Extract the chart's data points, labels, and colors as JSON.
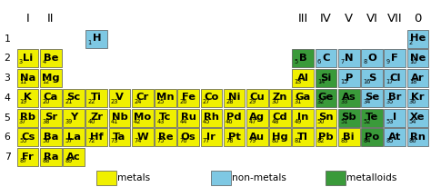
{
  "metals_color": "#f0f000",
  "nonmetals_color": "#7ec8e3",
  "metalloids_color": "#3a9a3a",
  "border_color": "#555555",
  "bg_color": "#ffffff",
  "elements": [
    {
      "symbol": "H",
      "num": "1",
      "col": 4,
      "row": 1,
      "type": "nonmetal"
    },
    {
      "symbol": "He",
      "num": "2",
      "col": 18,
      "row": 1,
      "type": "nonmetal"
    },
    {
      "symbol": "Li",
      "num": "3",
      "col": 1,
      "row": 2,
      "type": "metal"
    },
    {
      "symbol": "Be",
      "num": "4",
      "col": 2,
      "row": 2,
      "type": "metal"
    },
    {
      "symbol": "B",
      "num": "5",
      "col": 13,
      "row": 2,
      "type": "metalloid"
    },
    {
      "symbol": "C",
      "num": "6",
      "col": 14,
      "row": 2,
      "type": "nonmetal"
    },
    {
      "symbol": "N",
      "num": "7",
      "col": 15,
      "row": 2,
      "type": "nonmetal"
    },
    {
      "symbol": "O",
      "num": "8",
      "col": 16,
      "row": 2,
      "type": "nonmetal"
    },
    {
      "symbol": "F",
      "num": "9",
      "col": 17,
      "row": 2,
      "type": "nonmetal"
    },
    {
      "symbol": "Ne",
      "num": "10",
      "col": 18,
      "row": 2,
      "type": "nonmetal"
    },
    {
      "symbol": "Na",
      "num": "11",
      "col": 1,
      "row": 3,
      "type": "metal"
    },
    {
      "symbol": "Mg",
      "num": "12",
      "col": 2,
      "row": 3,
      "type": "metal"
    },
    {
      "symbol": "Al",
      "num": "13",
      "col": 13,
      "row": 3,
      "type": "metal"
    },
    {
      "symbol": "Si",
      "num": "14",
      "col": 14,
      "row": 3,
      "type": "metalloid"
    },
    {
      "symbol": "P",
      "num": "15",
      "col": 15,
      "row": 3,
      "type": "nonmetal"
    },
    {
      "symbol": "S",
      "num": "16",
      "col": 16,
      "row": 3,
      "type": "nonmetal"
    },
    {
      "symbol": "Cl",
      "num": "17",
      "col": 17,
      "row": 3,
      "type": "nonmetal"
    },
    {
      "symbol": "Ar",
      "num": "18",
      "col": 18,
      "row": 3,
      "type": "nonmetal"
    },
    {
      "symbol": "K",
      "num": "19",
      "col": 1,
      "row": 4,
      "type": "metal"
    },
    {
      "symbol": "Ca",
      "num": "20",
      "col": 2,
      "row": 4,
      "type": "metal"
    },
    {
      "symbol": "Sc",
      "num": "21",
      "col": 3,
      "row": 4,
      "type": "metal"
    },
    {
      "symbol": "Ti",
      "num": "22",
      "col": 4,
      "row": 4,
      "type": "metal"
    },
    {
      "symbol": "V",
      "num": "23",
      "col": 5,
      "row": 4,
      "type": "metal"
    },
    {
      "symbol": "Cr",
      "num": "24",
      "col": 6,
      "row": 4,
      "type": "metal"
    },
    {
      "symbol": "Mn",
      "num": "25",
      "col": 7,
      "row": 4,
      "type": "metal"
    },
    {
      "symbol": "Fe",
      "num": "26",
      "col": 8,
      "row": 4,
      "type": "metal"
    },
    {
      "symbol": "Co",
      "num": "27",
      "col": 9,
      "row": 4,
      "type": "metal"
    },
    {
      "symbol": "Ni",
      "num": "28",
      "col": 10,
      "row": 4,
      "type": "metal"
    },
    {
      "symbol": "Cu",
      "num": "29",
      "col": 11,
      "row": 4,
      "type": "metal"
    },
    {
      "symbol": "Zn",
      "num": "30",
      "col": 12,
      "row": 4,
      "type": "metal"
    },
    {
      "symbol": "Ga",
      "num": "31",
      "col": 13,
      "row": 4,
      "type": "metal"
    },
    {
      "symbol": "Ge",
      "num": "32",
      "col": 14,
      "row": 4,
      "type": "metalloid"
    },
    {
      "symbol": "As",
      "num": "33",
      "col": 15,
      "row": 4,
      "type": "metalloid"
    },
    {
      "symbol": "Se",
      "num": "34",
      "col": 16,
      "row": 4,
      "type": "nonmetal"
    },
    {
      "symbol": "Br",
      "num": "35",
      "col": 17,
      "row": 4,
      "type": "nonmetal"
    },
    {
      "symbol": "Kr",
      "num": "36",
      "col": 18,
      "row": 4,
      "type": "nonmetal"
    },
    {
      "symbol": "Rb",
      "num": "37",
      "col": 1,
      "row": 5,
      "type": "metal"
    },
    {
      "symbol": "Sr",
      "num": "38",
      "col": 2,
      "row": 5,
      "type": "metal"
    },
    {
      "symbol": "Y",
      "num": "39",
      "col": 3,
      "row": 5,
      "type": "metal"
    },
    {
      "symbol": "Zr",
      "num": "40",
      "col": 4,
      "row": 5,
      "type": "metal"
    },
    {
      "symbol": "Nb",
      "num": "41",
      "col": 5,
      "row": 5,
      "type": "metal"
    },
    {
      "symbol": "Mo",
      "num": "42",
      "col": 6,
      "row": 5,
      "type": "metal"
    },
    {
      "symbol": "Tc",
      "num": "43",
      "col": 7,
      "row": 5,
      "type": "metal"
    },
    {
      "symbol": "Ru",
      "num": "44",
      "col": 8,
      "row": 5,
      "type": "metal"
    },
    {
      "symbol": "Rh",
      "num": "45",
      "col": 9,
      "row": 5,
      "type": "metal"
    },
    {
      "symbol": "Pd",
      "num": "46",
      "col": 10,
      "row": 5,
      "type": "metal"
    },
    {
      "symbol": "Ag",
      "num": "47",
      "col": 11,
      "row": 5,
      "type": "metal"
    },
    {
      "symbol": "Cd",
      "num": "48",
      "col": 12,
      "row": 5,
      "type": "metal"
    },
    {
      "symbol": "In",
      "num": "49",
      "col": 13,
      "row": 5,
      "type": "metal"
    },
    {
      "symbol": "Sn",
      "num": "50",
      "col": 14,
      "row": 5,
      "type": "metal"
    },
    {
      "symbol": "Sb",
      "num": "51",
      "col": 15,
      "row": 5,
      "type": "metalloid"
    },
    {
      "symbol": "Te",
      "num": "52",
      "col": 16,
      "row": 5,
      "type": "metalloid"
    },
    {
      "symbol": "I",
      "num": "53",
      "col": 17,
      "row": 5,
      "type": "nonmetal"
    },
    {
      "symbol": "Xe",
      "num": "54",
      "col": 18,
      "row": 5,
      "type": "nonmetal"
    },
    {
      "symbol": "Cs",
      "num": "55",
      "col": 1,
      "row": 6,
      "type": "metal"
    },
    {
      "symbol": "Ba",
      "num": "56",
      "col": 2,
      "row": 6,
      "type": "metal"
    },
    {
      "symbol": "La",
      "num": "57",
      "col": 3,
      "row": 6,
      "type": "metal"
    },
    {
      "symbol": "Hf",
      "num": "72",
      "col": 4,
      "row": 6,
      "type": "metal"
    },
    {
      "symbol": "Ta",
      "num": "73",
      "col": 5,
      "row": 6,
      "type": "metal"
    },
    {
      "symbol": "W",
      "num": "74",
      "col": 6,
      "row": 6,
      "type": "metal"
    },
    {
      "symbol": "Re",
      "num": "75",
      "col": 7,
      "row": 6,
      "type": "metal"
    },
    {
      "symbol": "Os",
      "num": "76",
      "col": 8,
      "row": 6,
      "type": "metal"
    },
    {
      "symbol": "Ir",
      "num": "77",
      "col": 9,
      "row": 6,
      "type": "metal"
    },
    {
      "symbol": "Pt",
      "num": "78",
      "col": 10,
      "row": 6,
      "type": "metal"
    },
    {
      "symbol": "Au",
      "num": "79",
      "col": 11,
      "row": 6,
      "type": "metal"
    },
    {
      "symbol": "Hg",
      "num": "80",
      "col": 12,
      "row": 6,
      "type": "metal"
    },
    {
      "symbol": "Tl",
      "num": "81",
      "col": 13,
      "row": 6,
      "type": "metal"
    },
    {
      "symbol": "Pb",
      "num": "82",
      "col": 14,
      "row": 6,
      "type": "metal"
    },
    {
      "symbol": "Bi",
      "num": "83",
      "col": 15,
      "row": 6,
      "type": "metal"
    },
    {
      "symbol": "Po",
      "num": "84",
      "col": 16,
      "row": 6,
      "type": "metalloid"
    },
    {
      "symbol": "At",
      "num": "85",
      "col": 17,
      "row": 6,
      "type": "nonmetal"
    },
    {
      "symbol": "Rn",
      "num": "86",
      "col": 18,
      "row": 6,
      "type": "nonmetal"
    },
    {
      "symbol": "Fr",
      "num": "87",
      "col": 1,
      "row": 7,
      "type": "metal"
    },
    {
      "symbol": "Ra",
      "num": "88",
      "col": 2,
      "row": 7,
      "type": "metal"
    },
    {
      "symbol": "Ac",
      "num": "89",
      "col": 3,
      "row": 7,
      "type": "metal"
    }
  ],
  "group_labels": [
    {
      "label": "I",
      "col": 1
    },
    {
      "label": "II",
      "col": 2
    },
    {
      "label": "III",
      "col": 13
    },
    {
      "label": "IV",
      "col": 14
    },
    {
      "label": "V",
      "col": 15
    },
    {
      "label": "VI",
      "col": 16
    },
    {
      "label": "VII",
      "col": 17
    },
    {
      "label": "0",
      "col": 18
    }
  ],
  "period_labels": [
    "1",
    "2",
    "3",
    "4",
    "5",
    "6",
    "7"
  ],
  "legend": [
    {
      "label": "metals",
      "type": "metal"
    },
    {
      "label": "non-metals",
      "type": "nonmetal"
    },
    {
      "label": "metalloids",
      "type": "metalloid"
    }
  ]
}
